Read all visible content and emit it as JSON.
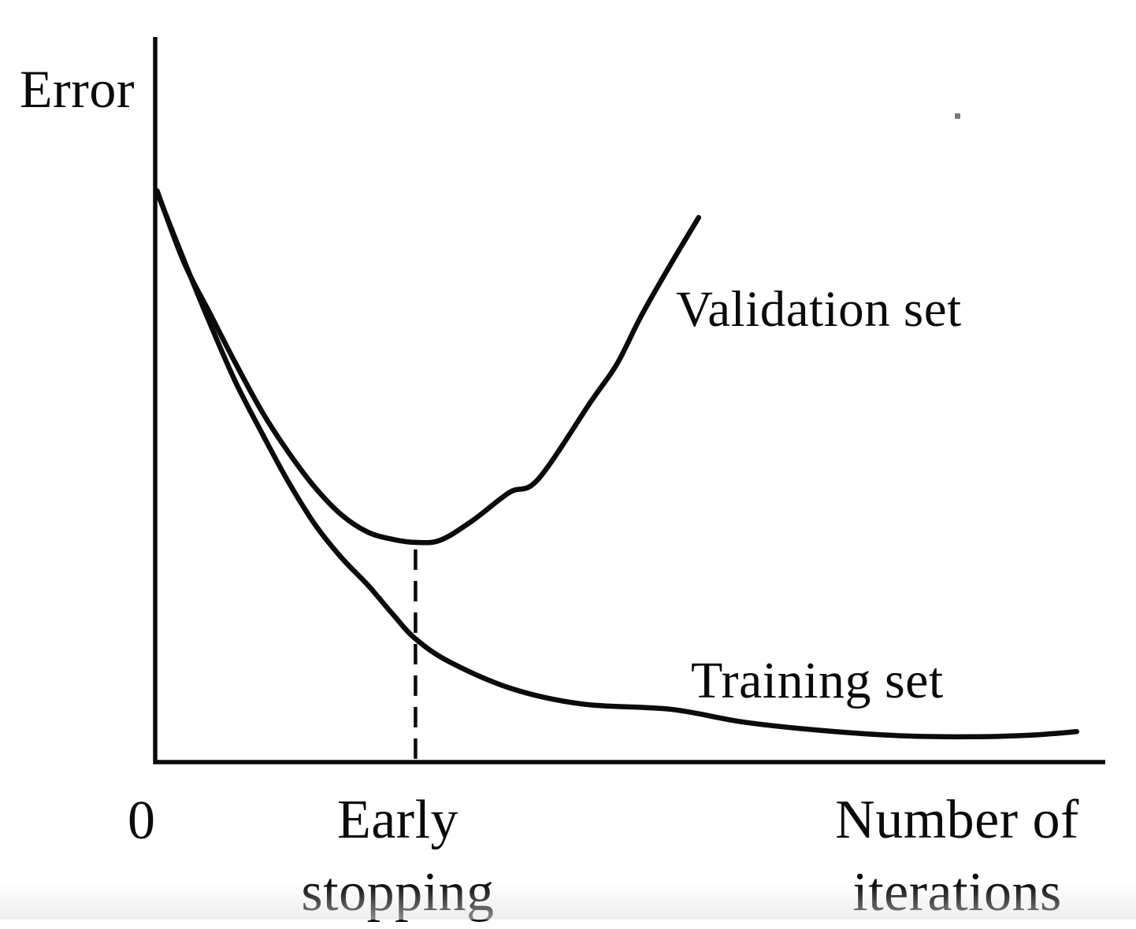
{
  "figure": {
    "background": "#ffffff",
    "ink_color": "#0b0b0b",
    "y_axis_label": "Error",
    "origin_tick_label": "0",
    "x_axis_label": {
      "line1": "Number of",
      "line2": "iterations"
    },
    "early_stopping_label": {
      "line1": "Early",
      "line2": "stopping"
    },
    "validation_curve_label": "Validation set",
    "training_curve_label": "Training set"
  },
  "chart_data": {
    "type": "line",
    "title": "",
    "xlabel": "Number of iterations",
    "ylabel": "Error",
    "xlim": [
      0,
      1
    ],
    "ylim": [
      0,
      1
    ],
    "grid": false,
    "legend_position": "inline-annotations",
    "x_ticks": [
      {
        "pos": 0,
        "label": "0"
      }
    ],
    "annotations": [
      {
        "label": "Early stopping",
        "x": 0.274,
        "style": "vertical-dashed-line"
      }
    ],
    "series": [
      {
        "name": "Training set",
        "x": [
          0.002,
          0.03,
          0.058,
          0.085,
          0.113,
          0.14,
          0.168,
          0.196,
          0.224,
          0.25,
          0.274,
          0.31,
          0.376,
          0.45,
          0.542,
          0.62,
          0.707,
          0.79,
          0.859,
          0.92,
          0.97
        ],
        "y": [
          0.786,
          0.693,
          0.604,
          0.523,
          0.452,
          0.387,
          0.328,
          0.282,
          0.244,
          0.204,
          0.17,
          0.138,
          0.101,
          0.08,
          0.073,
          0.055,
          0.043,
          0.036,
          0.035,
          0.037,
          0.042
        ]
      },
      {
        "name": "Validation set",
        "x": [
          0.002,
          0.03,
          0.058,
          0.085,
          0.113,
          0.141,
          0.168,
          0.196,
          0.224,
          0.251,
          0.274,
          0.3,
          0.334,
          0.373,
          0.403,
          0.459,
          0.486,
          0.511,
          0.541,
          0.572
        ],
        "y": [
          0.788,
          0.69,
          0.618,
          0.549,
          0.482,
          0.426,
          0.379,
          0.341,
          0.317,
          0.307,
          0.303,
          0.306,
          0.333,
          0.372,
          0.39,
          0.498,
          0.549,
          0.614,
          0.683,
          0.751
        ]
      }
    ]
  }
}
